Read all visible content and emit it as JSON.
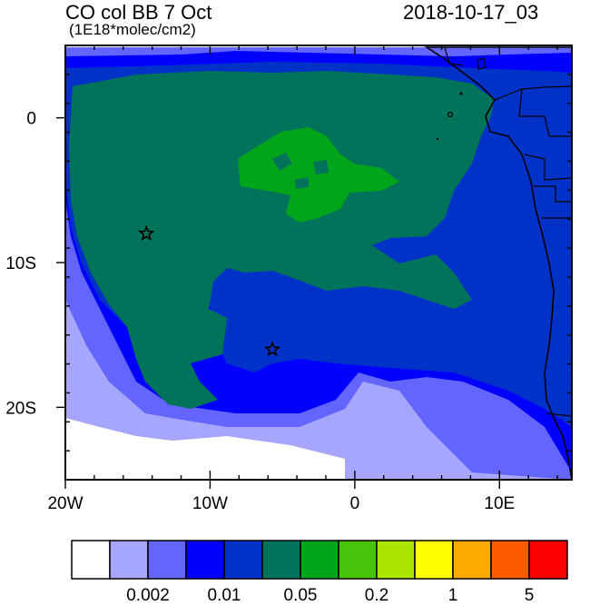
{
  "header": {
    "field_title": "CO col BB 7 Oct",
    "units": "(1E18*molec/cm2)",
    "timestamp": "2018-10-17_03"
  },
  "map": {
    "lon_range": [
      -20,
      15
    ],
    "lat_range": [
      -25,
      5
    ],
    "x_ticks": [
      {
        "value": -20,
        "label": "20W"
      },
      {
        "value": -10,
        "label": "10W"
      },
      {
        "value": 0,
        "label": "0"
      },
      {
        "value": 10,
        "label": "10E"
      }
    ],
    "y_ticks": [
      {
        "value": 0,
        "label": "0"
      },
      {
        "value": -10,
        "label": "10S"
      },
      {
        "value": -20,
        "label": "20S"
      }
    ],
    "markers": [
      {
        "name": "star-marker",
        "lon": -14.4,
        "lat": -8.0
      },
      {
        "name": "star-marker",
        "lon": -5.7,
        "lat": -16.0
      }
    ]
  },
  "colorbar": {
    "colors": [
      "#ffffff",
      "#a6a6ff",
      "#6464ff",
      "#0000ff",
      "#0032c8",
      "#00735a",
      "#00a519",
      "#46c30a",
      "#aae600",
      "#ffff00",
      "#ffaa00",
      "#ff5a00",
      "#ff0000"
    ],
    "labels": [
      {
        "after_box": 2,
        "text": "0.002"
      },
      {
        "after_box": 4,
        "text": "0.01"
      },
      {
        "after_box": 6,
        "text": "0.05"
      },
      {
        "after_box": 8,
        "text": "0.2"
      },
      {
        "after_box": 10,
        "text": "1"
      },
      {
        "after_box": 12,
        "text": "5"
      }
    ]
  }
}
